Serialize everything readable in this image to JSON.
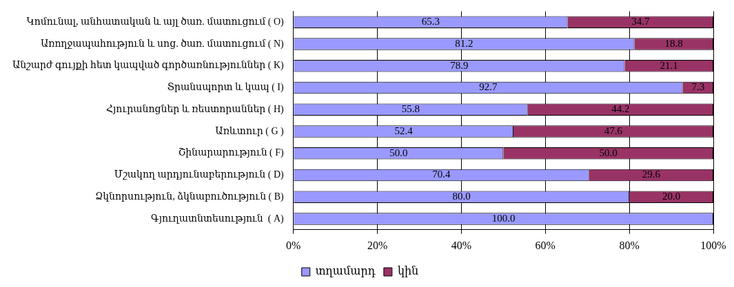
{
  "chart_data": {
    "type": "bar",
    "orientation": "horizontal",
    "stacked": true,
    "categories": [
      "Կոմունալ, անհատական և այլ ծառ. մատուցում ( O)",
      "Առողջապահություն և սոց. ծառ. մատուցում ( N)",
      "Անշարժ գույքի հետ կապված գործառնություններ ( K)",
      "Տրանսպորտ և կապ ( I)",
      "Հյուրանոցներ և ռեստորաններ ( H)",
      "Առևտուր ( G )",
      "Շինարարություն ( F)",
      "Մշակող արդյունաբերություն ( D)",
      "Ձկնորսություն, ձկնաբուծություն ( B)",
      "Գյուղատնտեսություն  ( A)"
    ],
    "series": [
      {
        "name": "տղամարդ",
        "color": "#9999ff",
        "values": [
          65.3,
          81.2,
          78.9,
          92.7,
          55.8,
          52.4,
          50.0,
          70.4,
          80.0,
          100.0
        ],
        "value_labels": [
          "65.3",
          "81.2",
          "78.9",
          "92.7",
          "55.8",
          "52.4",
          "50.0",
          "70.4",
          "80.0",
          "100.0"
        ]
      },
      {
        "name": "կին",
        "color": "#993366",
        "values": [
          34.7,
          18.8,
          21.1,
          7.3,
          44.2,
          47.6,
          50.0,
          29.6,
          20.0,
          0
        ],
        "value_labels": [
          "34.7",
          "18.8",
          "21.1",
          "7.3",
          "44.2",
          "47.6",
          "50.0",
          "29.6",
          "20.0",
          null
        ]
      }
    ],
    "xlim": [
      0,
      100
    ],
    "xticks": [
      {
        "value": 0,
        "label": "0%"
      },
      {
        "value": 20,
        "label": "20%"
      },
      {
        "value": 40,
        "label": "40%"
      },
      {
        "value": 60,
        "label": "60%"
      },
      {
        "value": 80,
        "label": "80%"
      },
      {
        "value": 100,
        "label": "100%"
      }
    ],
    "grid": "x",
    "legend": "bottom"
  }
}
